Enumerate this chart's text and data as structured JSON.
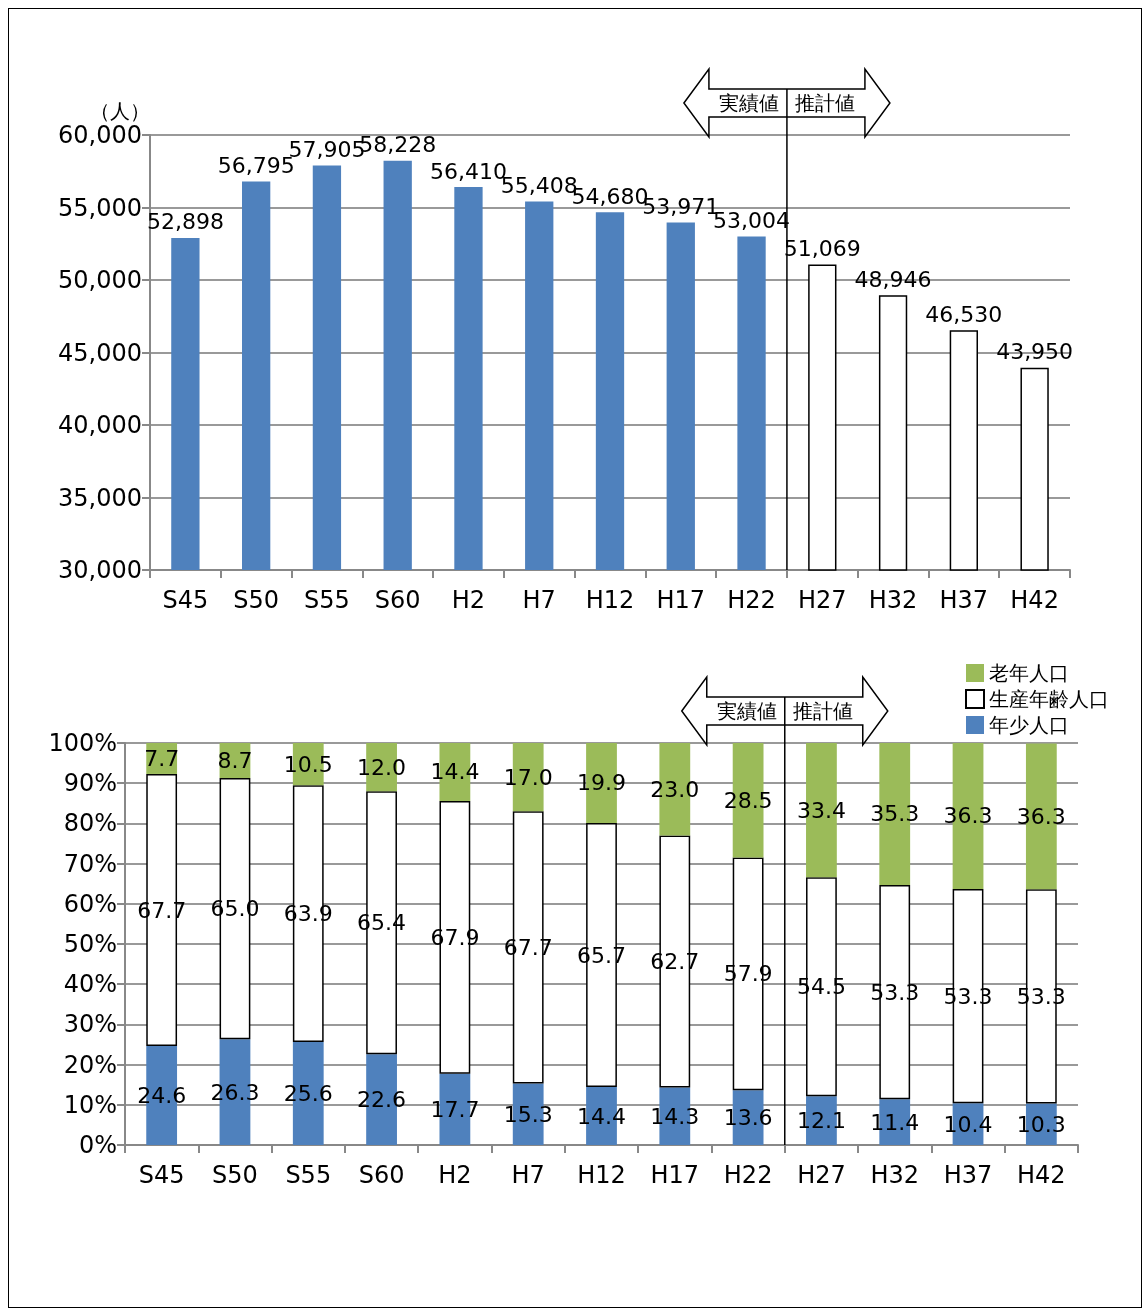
{
  "chart_data": [
    {
      "type": "bar",
      "ylabel": "（人）",
      "categories": [
        "S45",
        "S50",
        "S55",
        "S60",
        "H2",
        "H7",
        "H12",
        "H17",
        "H22",
        "H27",
        "H32",
        "H37",
        "H42"
      ],
      "values": [
        52898,
        56795,
        57905,
        58228,
        56410,
        55408,
        54680,
        53971,
        53004,
        51069,
        48946,
        46530,
        43950
      ],
      "value_labels": [
        "52,898",
        "56,795",
        "57,905",
        "58,228",
        "56,410",
        "55,408",
        "54,680",
        "53,971",
        "53,004",
        "51,069",
        "48,946",
        "46,530",
        "43,950"
      ],
      "colors": [
        "#4f81bd",
        "#4f81bd",
        "#4f81bd",
        "#4f81bd",
        "#4f81bd",
        "#4f81bd",
        "#4f81bd",
        "#4f81bd",
        "#4f81bd",
        "#ffffff",
        "#ffffff",
        "#ffffff",
        "#ffffff"
      ],
      "ylim": [
        30000,
        60000
      ],
      "yticks": [
        {
          "value": 30000,
          "label": "30,000"
        },
        {
          "value": 35000,
          "label": "35,000"
        },
        {
          "value": 40000,
          "label": "40,000"
        },
        {
          "value": 45000,
          "label": "45,000"
        },
        {
          "value": 50000,
          "label": "50,000"
        },
        {
          "value": 55000,
          "label": "55,000"
        },
        {
          "value": 60000,
          "label": "60,000"
        }
      ],
      "grid": "y",
      "ref_lines": [
        {
          "axis": "x",
          "value": "H27"
        }
      ],
      "annotations": [
        "実績値",
        "推計値"
      ]
    },
    {
      "type": "bar",
      "stacked": true,
      "categories": [
        "S45",
        "S50",
        "S55",
        "S60",
        "H2",
        "H7",
        "H12",
        "H17",
        "H22",
        "H27",
        "H32",
        "H37",
        "H42"
      ],
      "series": [
        {
          "name": "年少人口",
          "color": "#4f81bd",
          "values": [
            24.6,
            26.3,
            25.6,
            22.6,
            17.7,
            15.3,
            14.4,
            14.3,
            13.6,
            12.1,
            11.4,
            10.4,
            10.3
          ],
          "value_labels": [
            "24.6",
            "26.3",
            "25.6",
            "22.6",
            "17.7",
            "15.3",
            "14.4",
            "14.3",
            "13.6",
            "12.1",
            "11.4",
            "10.4",
            "10.3"
          ]
        },
        {
          "name": "生産年齢人口",
          "color": "#ffffff",
          "values": [
            67.7,
            65.0,
            63.9,
            65.4,
            67.9,
            67.7,
            65.7,
            62.7,
            57.9,
            54.5,
            53.3,
            53.3,
            53.3
          ],
          "value_labels": [
            "67.7",
            "65.0",
            "63.9",
            "65.4",
            "67.9",
            "67.7",
            "65.7",
            "62.7",
            "57.9",
            "54.5",
            "53.3",
            "53.3",
            "53.3"
          ]
        },
        {
          "name": "老年人口",
          "color": "#9bbb59",
          "values": [
            7.7,
            8.7,
            10.5,
            12.0,
            14.4,
            17.0,
            19.9,
            23.0,
            28.5,
            33.4,
            35.3,
            36.3,
            36.3
          ],
          "value_labels": [
            "7.7",
            "8.7",
            "10.5",
            "12.0",
            "14.4",
            "17.0",
            "19.9",
            "23.0",
            "28.5",
            "33.4",
            "35.3",
            "36.3",
            "36.3"
          ]
        }
      ],
      "ylim": [
        0,
        100
      ],
      "yticks": [
        {
          "value": 0,
          "label": "0%"
        },
        {
          "value": 10,
          "label": "10%"
        },
        {
          "value": 20,
          "label": "20%"
        },
        {
          "value": 30,
          "label": "30%"
        },
        {
          "value": 40,
          "label": "40%"
        },
        {
          "value": 50,
          "label": "50%"
        },
        {
          "value": 60,
          "label": "60%"
        },
        {
          "value": 70,
          "label": "70%"
        },
        {
          "value": 80,
          "label": "80%"
        },
        {
          "value": 90,
          "label": "90%"
        },
        {
          "value": 100,
          "label": "100%"
        }
      ],
      "grid": "y",
      "legend": "top right",
      "ref_lines": [
        {
          "axis": "x",
          "value": "H27"
        }
      ],
      "annotations": [
        "実績値",
        "推計値"
      ]
    }
  ]
}
